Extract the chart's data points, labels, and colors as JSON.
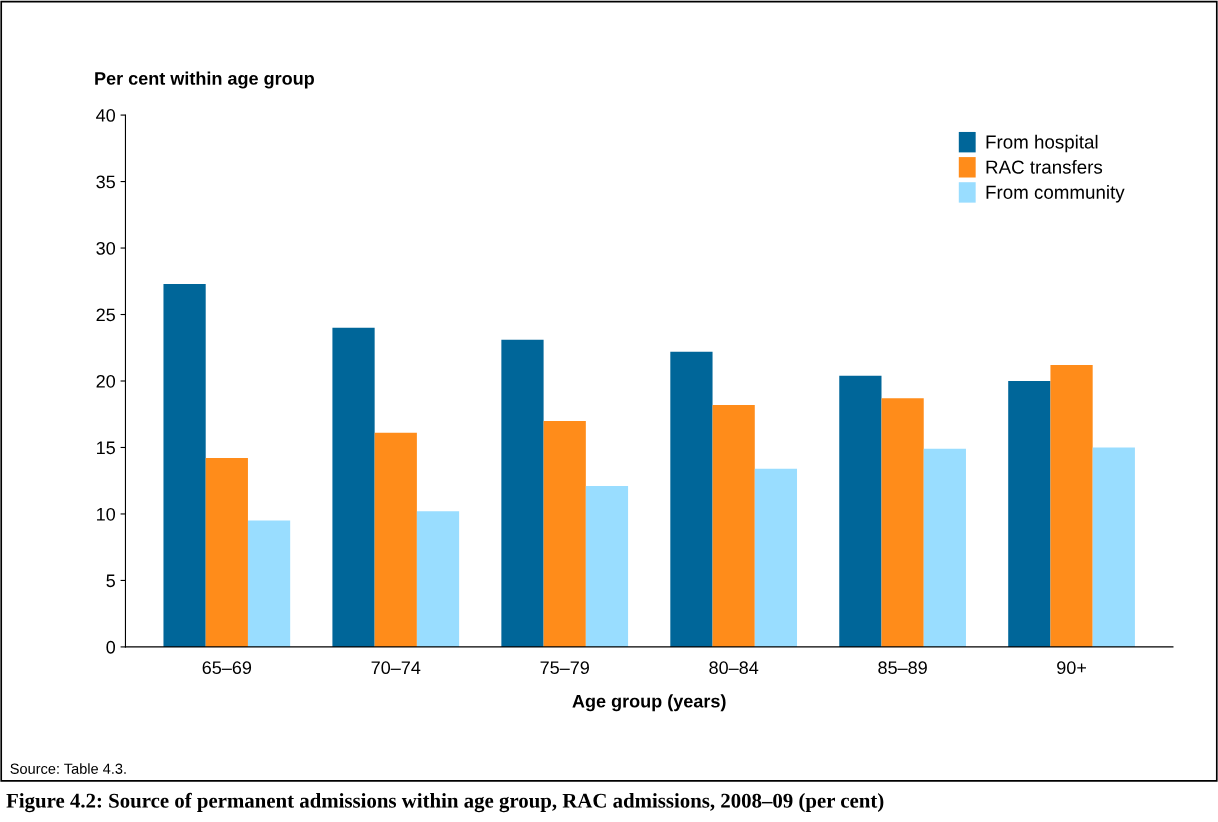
{
  "chart_data": {
    "type": "bar",
    "title": "Figure 4.2: Source of permanent admissions within age group, RAC admissions, 2008–09 (per cent)",
    "ylabel": "Per cent within age group",
    "xlabel": "Age group (years)",
    "annotations": [
      "Source: Table 4.3."
    ],
    "categories": [
      "65–69",
      "70–74",
      "75–79",
      "80–84",
      "85–89",
      "90+"
    ],
    "series": [
      {
        "name": "From hospital",
        "color": "#006699",
        "values": [
          27.3,
          24.0,
          23.1,
          22.2,
          20.4,
          20.0
        ]
      },
      {
        "name": "RAC transfers",
        "color": "#ff8c1a",
        "values": [
          14.2,
          16.1,
          17.0,
          18.2,
          18.7,
          21.2
        ]
      },
      {
        "name": "From community",
        "color": "#99ddff",
        "values": [
          9.5,
          10.2,
          12.1,
          13.4,
          14.9,
          15.0
        ]
      }
    ],
    "ylim": [
      0,
      40
    ],
    "yticks": [
      0,
      5,
      10,
      15,
      20,
      25,
      30,
      35,
      40
    ],
    "grid": false,
    "legend": "top right"
  }
}
